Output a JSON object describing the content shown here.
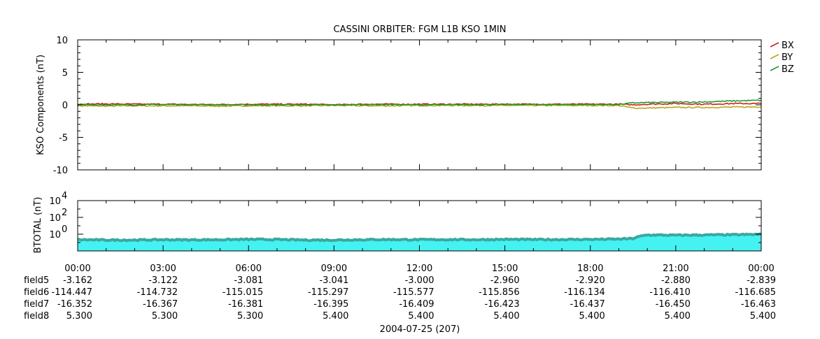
{
  "chart_data": [
    {
      "type": "line",
      "title": "CASSINI ORBITER: FGM L1B KSO 1MIN",
      "ylabel": "KSO Components (nT)",
      "ylim": [
        -10,
        10
      ],
      "yticks": [
        "10",
        "5",
        "0",
        "-5",
        "-10"
      ],
      "x_hours": [
        0,
        1,
        2,
        3,
        4,
        5,
        6,
        7,
        8,
        9,
        10,
        11,
        12,
        13,
        14,
        15,
        16,
        17,
        18,
        19,
        19.5,
        20,
        21,
        22,
        23,
        24
      ],
      "series": [
        {
          "name": "BX",
          "color": "#c8201c",
          "values": [
            0.1,
            0.15,
            0.1,
            0.1,
            0.05,
            0.05,
            0.1,
            0.1,
            0.1,
            0.0,
            0.1,
            0.1,
            0.1,
            0.1,
            0.1,
            0.1,
            0.1,
            0.1,
            0.1,
            0.1,
            0.0,
            0.1,
            0.2,
            0.1,
            0.2,
            0.2
          ]
        },
        {
          "name": "BY",
          "color": "#b8a81a",
          "values": [
            -0.15,
            -0.2,
            -0.15,
            -0.15,
            -0.15,
            -0.2,
            -0.15,
            -0.15,
            -0.15,
            -0.1,
            -0.15,
            -0.15,
            -0.1,
            -0.1,
            -0.1,
            -0.1,
            -0.1,
            -0.1,
            -0.1,
            -0.1,
            -0.5,
            -0.5,
            -0.4,
            -0.4,
            -0.35,
            -0.3
          ]
        },
        {
          "name": "BZ",
          "color": "#1e9c2e",
          "values": [
            0.05,
            0.0,
            0.0,
            0.05,
            0.05,
            0.0,
            0.0,
            0.0,
            0.0,
            0.0,
            0.05,
            0.05,
            0.0,
            0.0,
            0.05,
            0.05,
            0.05,
            0.05,
            0.05,
            0.05,
            0.3,
            0.35,
            0.4,
            0.45,
            0.6,
            0.7
          ]
        }
      ],
      "legend": "top-right"
    },
    {
      "type": "area",
      "ylabel": "BTOTAL (nT)",
      "yscale": "log",
      "ylim": [
        0.01,
        10000
      ],
      "yticks": [
        {
          "base": "10",
          "exp": "4",
          "value": 10000
        },
        {
          "base": "10",
          "exp": "2",
          "value": 100
        },
        {
          "base": "10",
          "exp": "0",
          "value": 1
        }
      ],
      "x_hours": [
        0,
        1,
        2,
        3,
        4,
        5,
        6,
        7,
        8,
        9,
        10,
        11,
        12,
        13,
        14,
        15,
        16,
        17,
        18,
        19,
        19.5,
        20,
        21,
        22,
        23,
        24
      ],
      "values": [
        0.22,
        0.2,
        0.2,
        0.22,
        0.21,
        0.22,
        0.24,
        0.23,
        0.2,
        0.2,
        0.22,
        0.23,
        0.22,
        0.23,
        0.22,
        0.24,
        0.23,
        0.23,
        0.24,
        0.26,
        0.3,
        0.8,
        0.75,
        0.8,
        0.85,
        0.95
      ],
      "fill_color": "#44f2f2",
      "line_color": "#3aa8a0"
    }
  ],
  "x_axis": {
    "tick_labels": [
      "00:00",
      "03:00",
      "06:00",
      "09:00",
      "12:00",
      "15:00",
      "18:00",
      "21:00",
      "00:00"
    ],
    "date_label": "2004-07-25 (207)"
  },
  "ephemeris": {
    "rows": [
      {
        "name": "field5",
        "values": [
          "-3.162",
          "-3.122",
          "-3.081",
          "-3.041",
          "-3.000",
          "-2.960",
          "-2.920",
          "-2.880",
          "-2.839"
        ]
      },
      {
        "name": "field6",
        "values": [
          "-114.447",
          "-114.732",
          "-115.015",
          "-115.297",
          "-115.577",
          "-115.856",
          "-116.134",
          "-116.410",
          "-116.685"
        ]
      },
      {
        "name": "field7",
        "values": [
          "-16.352",
          "-16.367",
          "-16.381",
          "-16.395",
          "-16.409",
          "-16.423",
          "-16.437",
          "-16.450",
          "-16.463"
        ]
      },
      {
        "name": "field8",
        "values": [
          "5.300",
          "5.300",
          "5.300",
          "5.400",
          "5.400",
          "5.400",
          "5.400",
          "5.400",
          "5.400"
        ]
      }
    ]
  }
}
